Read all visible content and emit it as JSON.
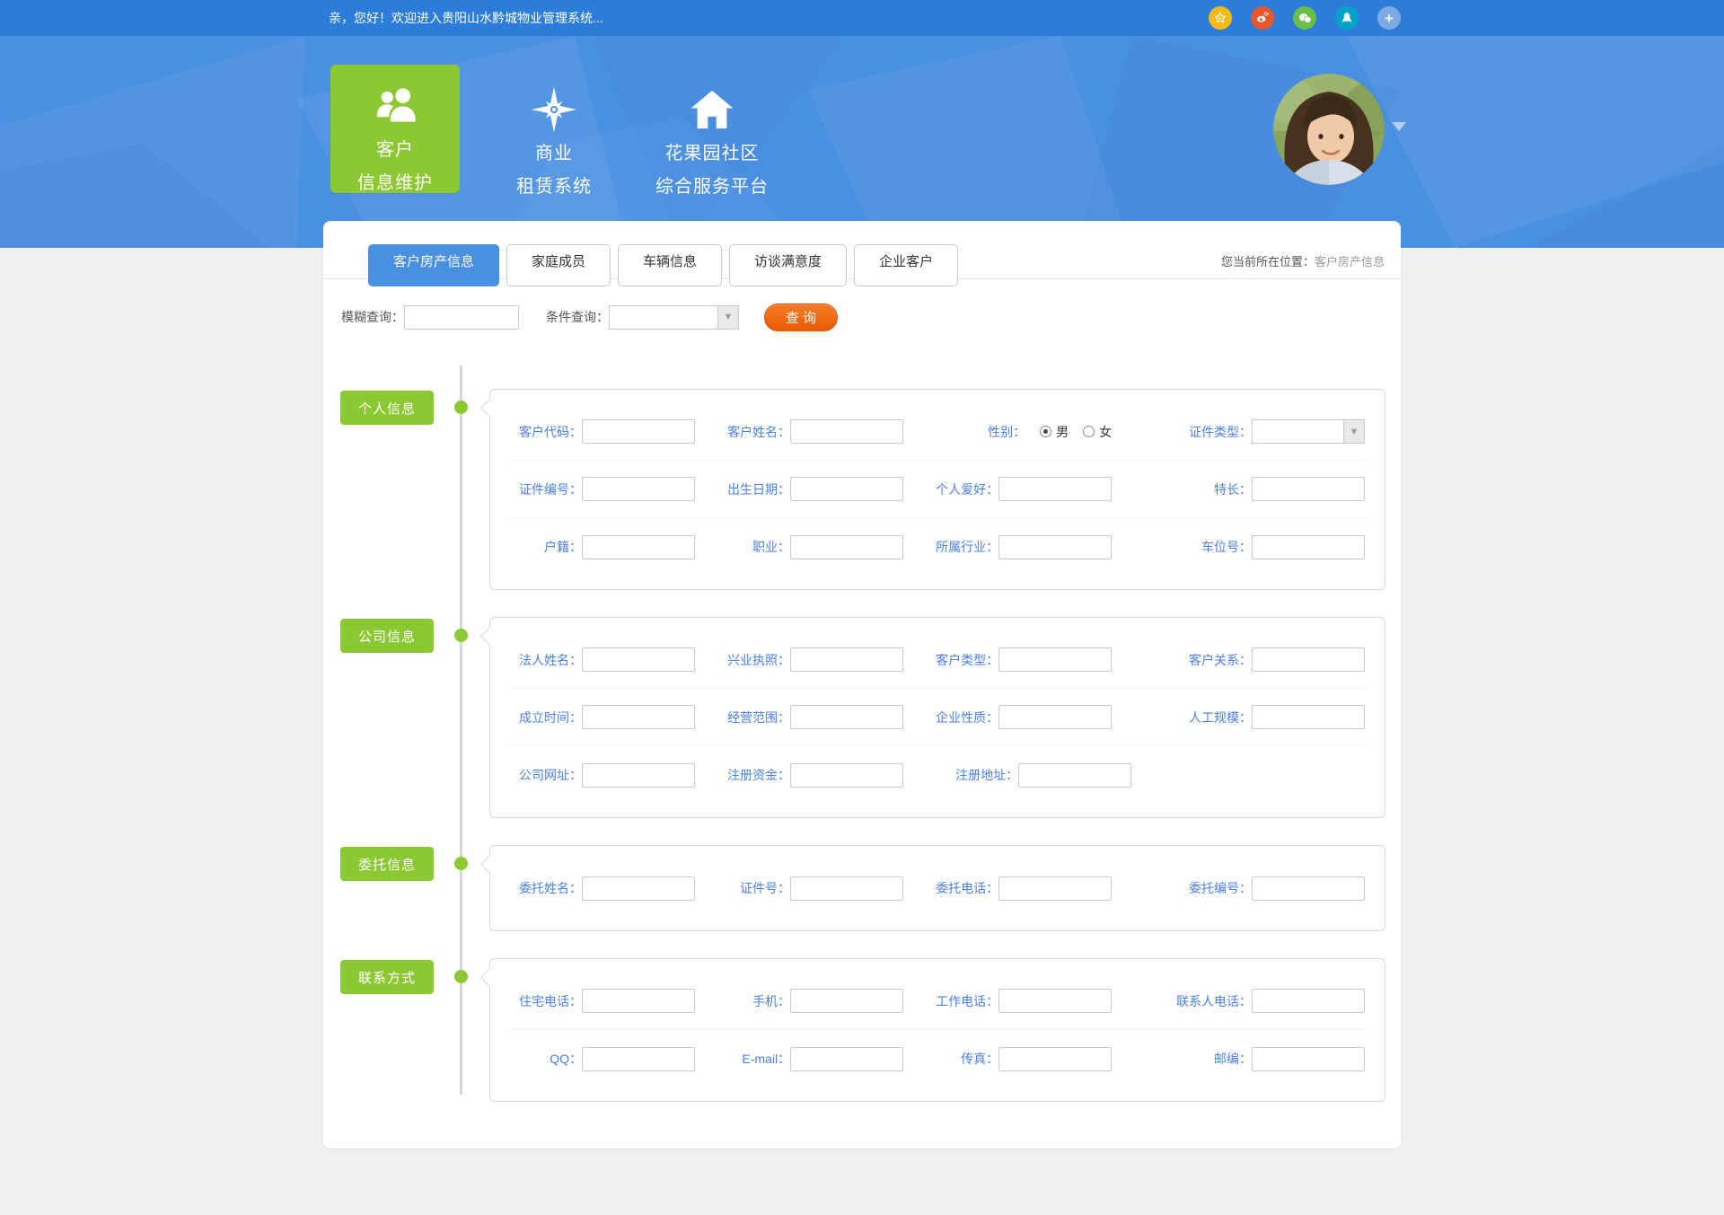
{
  "topbar": {
    "welcome": "亲，您好！欢迎进入贵阳山水黔城物业管理系统...",
    "icons": [
      {
        "name": "star-icon",
        "color": "#f5b915"
      },
      {
        "name": "weibo-icon",
        "color": "#e8562b"
      },
      {
        "name": "wechat-icon",
        "color": "#6abf47"
      },
      {
        "name": "qq-icon",
        "color": "#00a2c7"
      },
      {
        "name": "plus-icon",
        "color": "#7fa9e3",
        "glyph": "+"
      }
    ]
  },
  "header": {
    "menu": [
      {
        "id": "customer-info",
        "icon": "people-icon",
        "line1": "客户",
        "line2": "信息维护",
        "active": true
      },
      {
        "id": "leasing",
        "icon": "compass-icon",
        "line1": "商业",
        "line2": "租赁系统",
        "active": false
      },
      {
        "id": "community",
        "icon": "home-icon",
        "line1": "花果园社区",
        "line2": "综合服务平台",
        "active": false
      }
    ]
  },
  "tabs": {
    "items": [
      {
        "label": "客户房产信息",
        "active": true
      },
      {
        "label": "家庭成员",
        "active": false
      },
      {
        "label": "车辆信息",
        "active": false
      },
      {
        "label": "访谈满意度",
        "active": false
      },
      {
        "label": "企业客户",
        "active": false
      }
    ],
    "breadcrumb_prefix": "您当前所在位置：",
    "breadcrumb_current": "客户房产信息"
  },
  "search": {
    "fuzzy_label": "模糊查询：",
    "fuzzy_value": "",
    "condition_label": "条件查询：",
    "condition_value": "",
    "button_label": "查 询"
  },
  "sections": [
    {
      "title": "个人信息",
      "rows": [
        [
          {
            "label": "客户代码：",
            "type": "text"
          },
          {
            "label": "客户姓名：",
            "type": "text"
          },
          {
            "label": "性别：",
            "type": "radio",
            "options": [
              {
                "label": "男",
                "checked": true
              },
              {
                "label": "女",
                "checked": false
              }
            ]
          },
          {
            "label": "证件类型：",
            "type": "select",
            "value": ""
          }
        ],
        [
          {
            "label": "证件编号：",
            "type": "text"
          },
          {
            "label": "出生日期：",
            "type": "text"
          },
          {
            "label": "个人爱好：",
            "type": "text"
          },
          {
            "label": "特长：",
            "type": "text"
          }
        ],
        [
          {
            "label": "户籍：",
            "type": "text"
          },
          {
            "label": "职业：",
            "type": "text"
          },
          {
            "label": "所属行业：",
            "type": "text"
          },
          {
            "label": "车位号：",
            "type": "text"
          }
        ]
      ]
    },
    {
      "title": "公司信息",
      "rows": [
        [
          {
            "label": "法人姓名：",
            "type": "text"
          },
          {
            "label": "兴业执照：",
            "type": "text"
          },
          {
            "label": "客户类型：",
            "type": "text"
          },
          {
            "label": "客户关系：",
            "type": "text"
          }
        ],
        [
          {
            "label": "成立时间：",
            "type": "text"
          },
          {
            "label": "经营范围：",
            "type": "text"
          },
          {
            "label": "企业性质：",
            "type": "text"
          },
          {
            "label": "人工规模：",
            "type": "text"
          }
        ],
        [
          {
            "label": "公司网址：",
            "type": "text"
          },
          {
            "label": "注册资金：",
            "type": "text"
          },
          {
            "label": "注册地址：",
            "type": "text"
          }
        ]
      ]
    },
    {
      "title": "委托信息",
      "rows": [
        [
          {
            "label": "委托姓名：",
            "type": "text"
          },
          {
            "label": "证件号：",
            "type": "text"
          },
          {
            "label": "委托电话：",
            "type": "text"
          },
          {
            "label": "委托编号：",
            "type": "text"
          }
        ]
      ]
    },
    {
      "title": "联系方式",
      "rows": [
        [
          {
            "label": "住宅电话：",
            "type": "text"
          },
          {
            "label": "手机：",
            "type": "text"
          },
          {
            "label": "工作电话：",
            "type": "text"
          },
          {
            "label": "联系人电话：",
            "type": "text"
          }
        ],
        [
          {
            "label": "QQ：",
            "type": "text"
          },
          {
            "label": "E-mail：",
            "type": "text"
          },
          {
            "label": "传真：",
            "type": "text"
          },
          {
            "label": "邮编：",
            "type": "text"
          }
        ]
      ]
    }
  ],
  "colors": {
    "topbar_blue": "#2c7dd9",
    "header_blue": "#4a90e2",
    "accent_green": "#8cc832",
    "button_orange": "#ec6310",
    "field_label_blue": "#4a80e8",
    "tab_active_blue": "#4a90e2"
  }
}
